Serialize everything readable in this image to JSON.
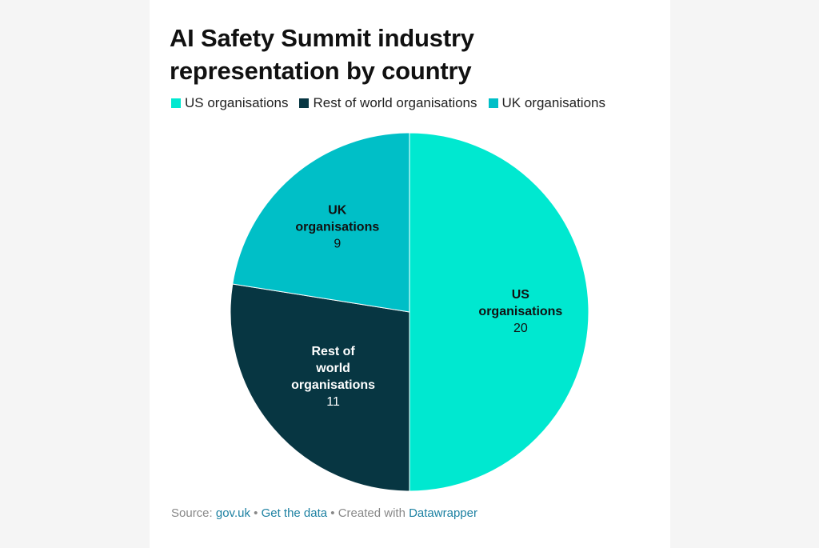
{
  "chart_data": {
    "type": "pie",
    "title": "AI Safety Summit industry representation by country",
    "categories": [
      "US organisations",
      "Rest of world organisations",
      "UK organisations"
    ],
    "values": [
      20,
      11,
      9
    ],
    "colors": [
      "#00e8d0",
      "#073642",
      "#00bfc7"
    ],
    "slice_labels": [
      {
        "lines": [
          "US",
          "organisations"
        ],
        "value": "20"
      },
      {
        "lines": [
          "Rest of",
          "world",
          "organisations"
        ],
        "value": "11"
      },
      {
        "lines": [
          "UK",
          "organisations"
        ],
        "value": "9"
      }
    ],
    "legend": [
      {
        "label": "US organisations",
        "color": "#00e8d0"
      },
      {
        "label": "Rest of world organisations",
        "color": "#073642"
      },
      {
        "label": "UK organisations",
        "color": "#00bfc7"
      }
    ],
    "legend_position": "top-left"
  },
  "footer": {
    "source_label": "Source: ",
    "source_link": "gov.uk",
    "sep1": " • ",
    "data_link": "Get the data",
    "sep2": " • Created with ",
    "tool_link": "Datawrapper"
  }
}
